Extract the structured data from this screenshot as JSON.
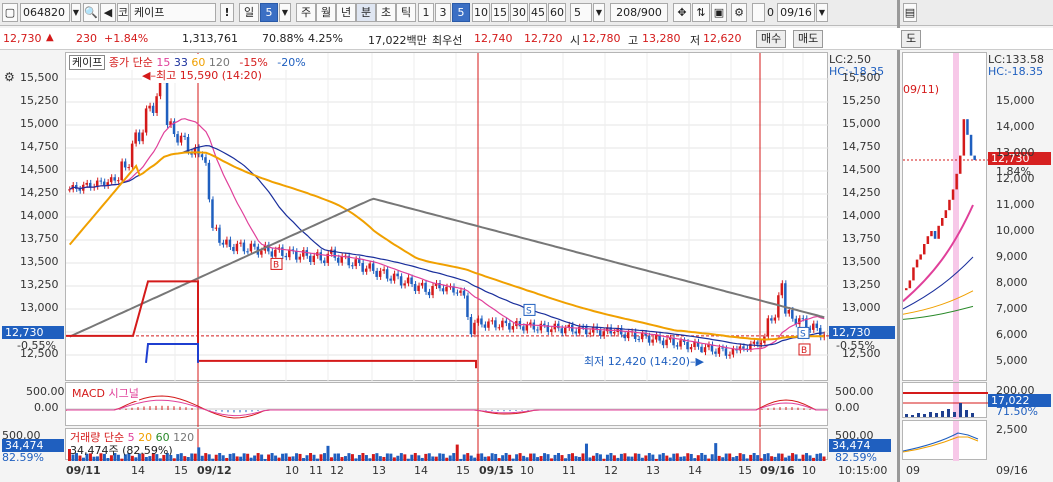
{
  "toolbar": {
    "code": "064820",
    "market_prefix": "코",
    "stock_name": "케이프",
    "period_buttons": [
      "일",
      "주",
      "월",
      "년",
      "분",
      "초",
      "틱"
    ],
    "period_count": "5",
    "minute_buttons": [
      "1",
      "3",
      "5",
      "10",
      "15",
      "30",
      "45",
      "60"
    ],
    "view_count": "5",
    "page_counter": "208/900",
    "checkbox_label": "0",
    "date_value": "09/16",
    "right_tab": "도"
  },
  "quote": {
    "price": "12,730",
    "change": "230",
    "change_pct": "+1.84%",
    "volume": "1,313,761",
    "ratio1": "70.88%",
    "ratio2": "4.25%",
    "amount": "17,022백만",
    "best_label": "최우선",
    "best_ask": "12,740",
    "best_bid": "12,720",
    "open_label": "시",
    "open": "12,780",
    "high_label": "고",
    "high": "13,280",
    "low_label": "저",
    "low": "12,620",
    "buy_label": "매수",
    "sell_label": "매도"
  },
  "main_chart": {
    "legend_name": "케이프",
    "legend_ma_title": "종가 단순",
    "legend_ma": [
      "15",
      "33",
      "60",
      "120"
    ],
    "legend_pct": [
      "-15%",
      "-20%"
    ],
    "lc": "LC:2.50",
    "hc": "HC:-18.35",
    "high_note": "최고 15,590 (14:20)",
    "low_note": "최저 12,420 (14:20)",
    "current_tag": "12,730",
    "current_pct": "-0.55%",
    "y_ticks": [
      "15,500",
      "15,250",
      "15,000",
      "14,750",
      "14,500",
      "14,250",
      "14,000",
      "13,750",
      "13,500",
      "13,250",
      "13,000",
      "12,500"
    ]
  },
  "macd": {
    "label": "MACD",
    "signal_label": "시그널",
    "y_ticks": [
      "500.00",
      "0.00"
    ]
  },
  "volume": {
    "label": "거래량",
    "ma_title": "단순",
    "ma": [
      "5",
      "20",
      "60",
      "120"
    ],
    "y_top": "500,00",
    "current": "34,474",
    "pct": "82.59%",
    "note": "34,474주 (82.59%)"
  },
  "time_axis": [
    "09/11",
    "14",
    "15",
    "09/12",
    "10",
    "11",
    "12",
    "13",
    "14",
    "15",
    "09/15",
    "10",
    "11",
    "12",
    "13",
    "14",
    "15",
    "09/16",
    "10",
    "10:15:00"
  ],
  "right_chart": {
    "lc": "LC:133.58",
    "hc": "HC:-18.35",
    "date_note": "09/11)",
    "current_tag": "12,730",
    "current_pct": "1.84%",
    "y_ticks": [
      "15,000",
      "14,000",
      "13,000",
      "12,000",
      "11,000",
      "10,000",
      "9,000",
      "8,000",
      "7,000",
      "6,000",
      "5,000"
    ],
    "vol_top": "200,00",
    "vol_tag": "17,022",
    "vol_pct": "71.50%",
    "lower_tick": "2,500",
    "x_ticks": [
      "09",
      "09/16"
    ]
  },
  "colors": {
    "up": "#d41a1a",
    "down": "#1f5fbf",
    "ma15": "#e0409a",
    "ma33": "#1a2f9c",
    "ma60": "#f0a000",
    "ma120": "#777777"
  }
}
